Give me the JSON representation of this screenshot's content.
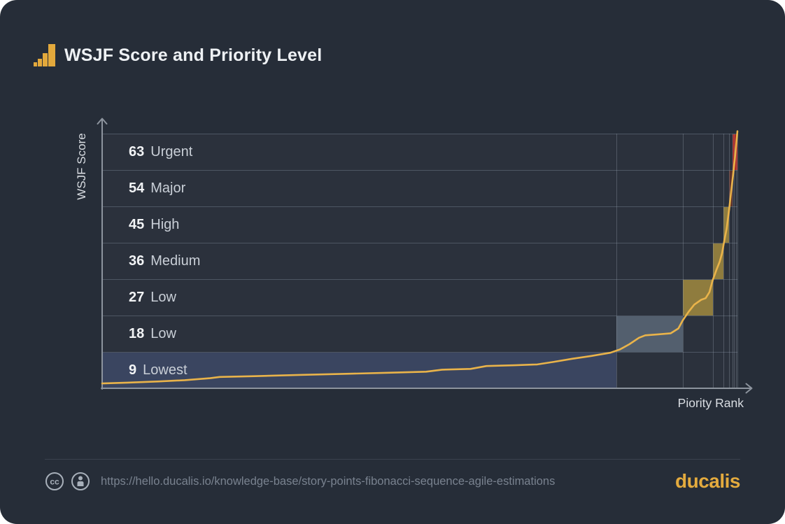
{
  "header": {
    "title": "WSJF Score and Priority Level"
  },
  "chart_data": {
    "type": "line",
    "title": "WSJF Score and Priority Level",
    "xlabel": "Piority Rank",
    "ylabel": "WSJF Score",
    "x_axis_note": "unlabeled priority rank, expressed as percent of ranked items (0-100)",
    "ylim": [
      0,
      63
    ],
    "grid": true,
    "legend": "none",
    "line_color": "#e9b34a",
    "bands": [
      {
        "score": 63,
        "label": "Urgent"
      },
      {
        "score": 54,
        "label": "Major"
      },
      {
        "score": 45,
        "label": "High"
      },
      {
        "score": 36,
        "label": "Medium"
      },
      {
        "score": 27,
        "label": "Low"
      },
      {
        "score": 18,
        "label": "Low"
      },
      {
        "score": 9,
        "label": "Lowest"
      }
    ],
    "line_points": [
      [
        0,
        1.2
      ],
      [
        4,
        1.4
      ],
      [
        9,
        1.7
      ],
      [
        13,
        2.0
      ],
      [
        17,
        2.5
      ],
      [
        18.5,
        2.8
      ],
      [
        24,
        3.0
      ],
      [
        31,
        3.3
      ],
      [
        39,
        3.6
      ],
      [
        45,
        3.85
      ],
      [
        51,
        4.1
      ],
      [
        53.5,
        4.6
      ],
      [
        58,
        4.8
      ],
      [
        60.5,
        5.5
      ],
      [
        65,
        5.7
      ],
      [
        68.5,
        5.9
      ],
      [
        71,
        6.5
      ],
      [
        74,
        7.3
      ],
      [
        77,
        8.0
      ],
      [
        80,
        8.8
      ],
      [
        81.5,
        9.6
      ],
      [
        83,
        10.9
      ],
      [
        84.5,
        12.5
      ],
      [
        85.5,
        13.1
      ],
      [
        87.5,
        13.35
      ],
      [
        89.5,
        13.6
      ],
      [
        90.7,
        14.8
      ],
      [
        91.4,
        16.8
      ],
      [
        92.3,
        18.9
      ],
      [
        93.2,
        20.7
      ],
      [
        94.3,
        21.9
      ],
      [
        95,
        22.3
      ],
      [
        95.6,
        23.8
      ],
      [
        96.1,
        26.7
      ],
      [
        96.7,
        29.3
      ],
      [
        97.2,
        31.3
      ],
      [
        97.6,
        33.5
      ],
      [
        97.9,
        36.2
      ],
      [
        98.3,
        39.5
      ],
      [
        98.7,
        44.3
      ],
      [
        99,
        48.5
      ],
      [
        99.3,
        52.5
      ],
      [
        99.6,
        57.0
      ],
      [
        99.8,
        60.3
      ],
      [
        100,
        63.6
      ]
    ],
    "highlight_cells": [
      {
        "band_score": 9,
        "from_pct": 0,
        "to_pct": 81,
        "color": "#3a4560"
      },
      {
        "band_score": 18,
        "from_pct": 81,
        "to_pct": 91.4,
        "color": "#535f6e"
      },
      {
        "band_score": 27,
        "from_pct": 91.4,
        "to_pct": 96.1,
        "color": "#8f7c3e"
      },
      {
        "band_score": 36,
        "from_pct": 96.1,
        "to_pct": 97.8,
        "color": "#8f7c3e"
      },
      {
        "band_score": 45,
        "from_pct": 97.8,
        "to_pct": 98.7,
        "color": "#8f7c3e"
      },
      {
        "band_score": 54,
        "from_pct": 98.7,
        "to_pct": 99.2,
        "color": "#5e332c"
      },
      {
        "band_score": 63,
        "from_pct": 99.2,
        "to_pct": 100,
        "color": "#ac2520"
      }
    ],
    "x_gridlines_pct": [
      81,
      91.4,
      96.1,
      97.8,
      98.7,
      99.2,
      99.5,
      99.8,
      100
    ]
  },
  "footer": {
    "icons": [
      "cc-icon",
      "attribution-icon"
    ],
    "url": "https://hello.ducalis.io/knowledge-base/story-points-fibonacci-sequence-agile-estimations",
    "brand": "ducalis"
  },
  "colors": {
    "card_background": "#262d38",
    "accent_gold": "#e4ab3e",
    "line": "#e9b34a",
    "band_separator": "#4d5663",
    "axis": "#8d949e",
    "urgent_red": "#ac2520"
  }
}
